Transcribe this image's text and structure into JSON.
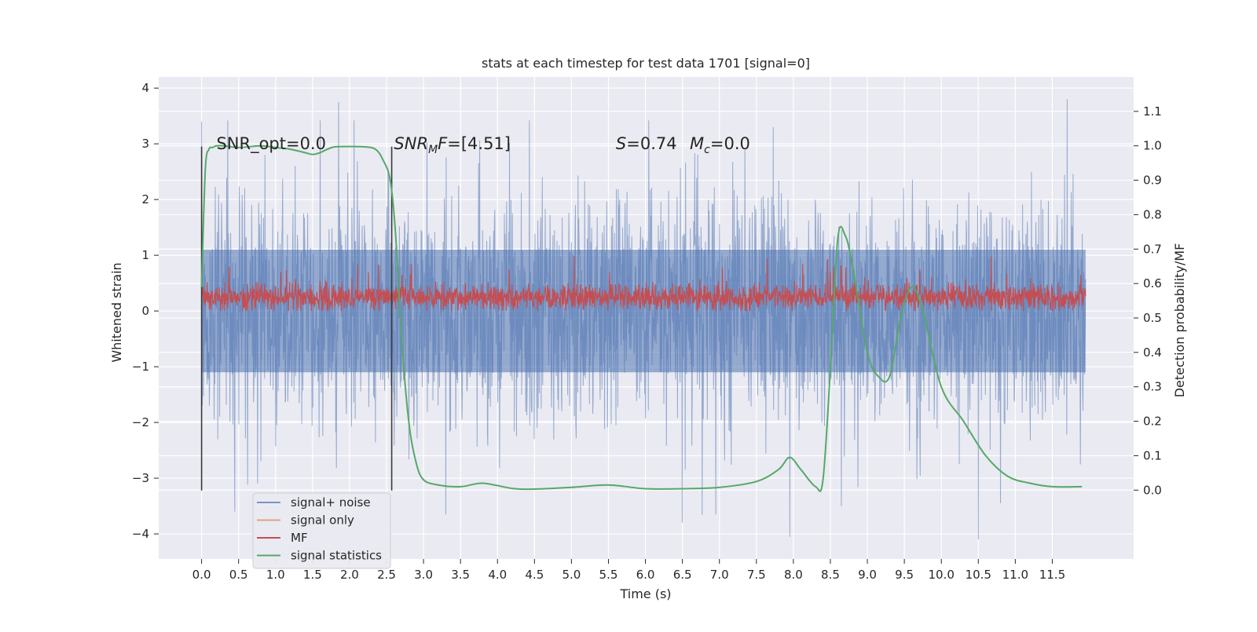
{
  "chart_data": {
    "type": "line",
    "title": "stats at each timestep for test data 1701 [signal=0]",
    "xlabel": "Time (s)",
    "ylabel": "Whitened strain",
    "ylabel_right": "Detection probability/MF",
    "xlim": [
      -0.58,
      12.6
    ],
    "ylim": [
      -4.45,
      4.2
    ],
    "ylim_right": [
      -0.2,
      1.2
    ],
    "x_ticks": [
      0.0,
      0.5,
      1.0,
      1.5,
      2.0,
      2.5,
      3.0,
      3.5,
      4.0,
      4.5,
      5.0,
      5.5,
      6.0,
      6.5,
      7.0,
      7.5,
      8.0,
      8.5,
      9.0,
      9.5,
      10.0,
      10.5,
      11.0,
      11.5
    ],
    "x_tick_labels": [
      "0.0",
      "0.5",
      "1.0",
      "1.5",
      "2.0",
      "2.5",
      "3.0",
      "3.5",
      "4.0",
      "4.5",
      "5.0",
      "5.5",
      "6.0",
      "6.5",
      "7.0",
      "7.5",
      "8.0",
      "8.5",
      "9.0",
      "9.5",
      "10.0",
      "10.5",
      "11.0",
      "11.5"
    ],
    "y_ticks": [
      4,
      3,
      2,
      1,
      0,
      -1,
      -2,
      -3,
      -4
    ],
    "y_tick_labels": [
      "4",
      "3",
      "2",
      "1",
      "0",
      "−1",
      "−2",
      "−3",
      "−4"
    ],
    "y2_ticks": [
      1.1,
      1.0,
      0.9,
      0.8,
      0.7,
      0.6,
      0.5,
      0.4,
      0.3,
      0.2,
      0.1,
      0.0
    ],
    "y2_tick_labels": [
      "1.1",
      "1.0",
      "0.9",
      "0.8",
      "0.7",
      "0.6",
      "0.5",
      "0.4",
      "0.3",
      "0.2",
      "0.1",
      "0.0"
    ],
    "grid": true,
    "legend_position": "bottom-left",
    "annotations": [
      {
        "text": "SNR_opt=0.0",
        "x": 0.2,
        "y": 3.0
      },
      {
        "text_main": "SNR",
        "text_sub": "M",
        "text_rest": "F=[4.51]",
        "x": 2.6,
        "y": 3.0
      },
      {
        "text": "S=0.74",
        "x": 5.6,
        "y": 3.0
      },
      {
        "text_main": "M",
        "text_sub": "c",
        "text_rest": "=0.0",
        "x": 6.6,
        "y": 3.0
      }
    ],
    "vertical_lines": [
      {
        "x": 0.0,
        "ymin": -3.22,
        "ymax": 2.95
      },
      {
        "x": 2.57,
        "ymin": -3.22,
        "ymax": 2.95
      }
    ],
    "series": [
      {
        "name": "signal+ noise",
        "color": "#4c72b0",
        "axis": "left",
        "noise_envelope": {
          "x_start": 0.0,
          "x_end": 11.95,
          "core_amplitude": 1.1,
          "spike_max": 3.8,
          "spike_min": -4.1,
          "notable_spikes": [
            [
              0.0,
              3.4
            ],
            [
              1.85,
              3.75
            ],
            [
              11.7,
              3.8
            ],
            [
              0.45,
              -3.6
            ],
            [
              3.3,
              -3.65
            ],
            [
              6.5,
              -3.8
            ],
            [
              6.95,
              -3.65
            ],
            [
              7.95,
              -4.05
            ],
            [
              8.65,
              -3.5
            ],
            [
              10.5,
              -4.1
            ],
            [
              10.8,
              -3.45
            ]
          ]
        }
      },
      {
        "name": "signal only",
        "color": "#dd8452",
        "axis": "left",
        "x": [],
        "y": []
      },
      {
        "name": "MF",
        "color": "#c44e52",
        "axis": "left",
        "noise_envelope": {
          "x_start": 0.0,
          "x_end": 11.95,
          "center": 0.25,
          "core_amplitude": 0.2,
          "spike_max": 1.0,
          "spike_min": 0.0
        }
      },
      {
        "name": "signal statistics",
        "color": "#55a868",
        "axis": "right",
        "x": [
          0.0,
          0.05,
          0.1,
          0.15,
          0.2,
          0.3,
          0.5,
          0.8,
          1.0,
          1.2,
          1.4,
          1.5,
          1.6,
          1.7,
          1.8,
          2.0,
          2.2,
          2.35,
          2.45,
          2.55,
          2.62,
          2.7,
          2.8,
          2.9,
          3.0,
          3.2,
          3.5,
          3.8,
          4.2,
          4.5,
          5.0,
          5.5,
          6.0,
          6.5,
          7.0,
          7.5,
          7.8,
          7.95,
          8.1,
          8.3,
          8.4,
          8.5,
          8.6,
          8.7,
          8.8,
          9.0,
          9.15,
          9.3,
          9.45,
          9.6,
          9.75,
          10.0,
          10.3,
          10.6,
          10.9,
          11.2,
          11.5,
          11.9
        ],
        "y": [
          0.59,
          0.93,
          0.99,
          0.995,
          1.0,
          1.0,
          0.995,
          1.0,
          0.995,
          0.99,
          0.98,
          0.975,
          0.98,
          0.99,
          0.997,
          0.998,
          0.997,
          0.99,
          0.96,
          0.9,
          0.75,
          0.45,
          0.2,
          0.08,
          0.03,
          0.015,
          0.01,
          0.02,
          0.005,
          0.003,
          0.008,
          0.015,
          0.004,
          0.004,
          0.008,
          0.025,
          0.06,
          0.095,
          0.06,
          0.01,
          0.03,
          0.35,
          0.73,
          0.74,
          0.65,
          0.4,
          0.33,
          0.33,
          0.5,
          0.59,
          0.52,
          0.3,
          0.2,
          0.1,
          0.04,
          0.02,
          0.01,
          0.01
        ]
      }
    ]
  }
}
